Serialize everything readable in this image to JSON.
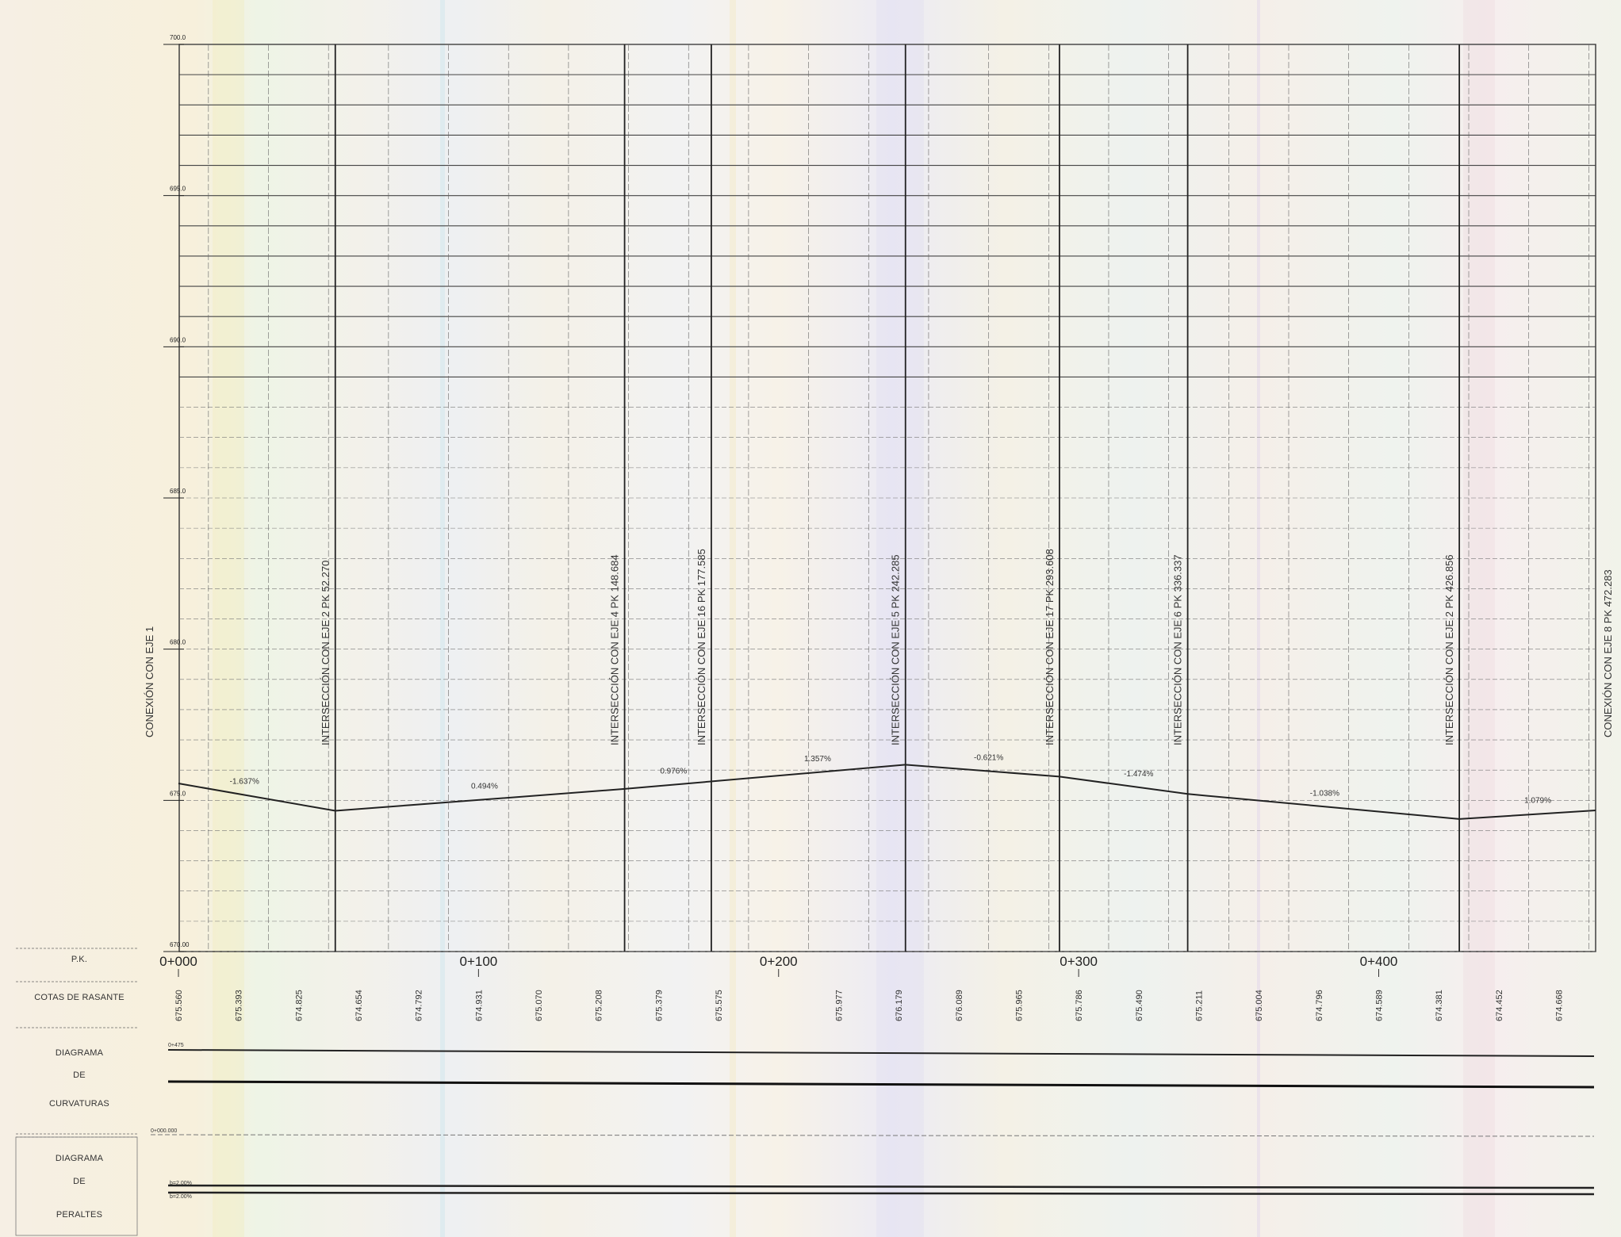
{
  "chart_data": {
    "type": "line",
    "y_ticks": [
      "700.0",
      "695.0",
      "690.0",
      "685.0",
      "680.0",
      "675.0",
      "670.00"
    ],
    "ylim": [
      670,
      700
    ],
    "xlim": [
      0,
      472.283
    ],
    "pk_labels": [
      {
        "pk": 0,
        "label": "0+000"
      },
      {
        "pk": 100,
        "label": "0+100"
      },
      {
        "pk": 200,
        "label": "0+200"
      },
      {
        "pk": 300,
        "label": "0+300"
      },
      {
        "pk": 400,
        "label": "0+400"
      }
    ],
    "profile": {
      "x": [
        0,
        52.27,
        148.684,
        242.285,
        293.608,
        336.337,
        426.856,
        472.283
      ],
      "y": [
        675.56,
        674.654,
        675.379,
        676.179,
        675.786,
        675.211,
        674.381,
        674.668
      ]
    },
    "grade_labels": [
      {
        "pk": 22,
        "text": "-1.637%"
      },
      {
        "pk": 102,
        "text": "0.494%"
      },
      {
        "pk": 165,
        "text": "0.976%"
      },
      {
        "pk": 213,
        "text": "1.357%"
      },
      {
        "pk": 270,
        "text": "-0.621%"
      },
      {
        "pk": 320,
        "text": "-1.474%"
      },
      {
        "pk": 382,
        "text": "-1.038%"
      },
      {
        "pk": 453,
        "text": "1.079%"
      }
    ],
    "vertical_annotations": [
      {
        "pk": 0,
        "text": "CONEXIÓN CON EJE 1",
        "line": false
      },
      {
        "pk": 52.27,
        "text": "INTERSECCIÓN CON EJE 2 PK 52.270",
        "line": true
      },
      {
        "pk": 148.684,
        "text": "INTERSECCIÓN CON EJE 4 PK 148.684",
        "line": true
      },
      {
        "pk": 177.585,
        "text": "INTERSECCIÓN CON EJE 16 PK 177.585",
        "line": true
      },
      {
        "pk": 242.285,
        "text": "INTERSECCIÓN CON EJE 5 PK 242.285",
        "line": true
      },
      {
        "pk": 293.608,
        "text": "INTERSECCIÓN CON EJE 17 PK 293.608",
        "line": true
      },
      {
        "pk": 336.337,
        "text": "INTERSECCIÓN CON EJE 6 PK 336.337",
        "line": true
      },
      {
        "pk": 426.856,
        "text": "INTERSECCIÓN CON EJE 2 PK 426.856",
        "line": true
      },
      {
        "pk": 472.283,
        "text": "CONEXIÓN CON EJE 8 PK 472.283",
        "line": false
      }
    ],
    "cotas": [
      {
        "pk": 0,
        "text": "675.560"
      },
      {
        "pk": 20,
        "text": "675.393"
      },
      {
        "pk": 40,
        "text": "674.825"
      },
      {
        "pk": 60,
        "text": "674.654"
      },
      {
        "pk": 80,
        "text": "674.792"
      },
      {
        "pk": 100,
        "text": "674.931"
      },
      {
        "pk": 120,
        "text": "675.070"
      },
      {
        "pk": 140,
        "text": "675.208"
      },
      {
        "pk": 160,
        "text": "675.379"
      },
      {
        "pk": 180,
        "text": "675.575"
      },
      {
        "pk": 220,
        "text": "675.977"
      },
      {
        "pk": 240,
        "text": "676.179"
      },
      {
        "pk": 260,
        "text": "676.089"
      },
      {
        "pk": 280,
        "text": "675.965"
      },
      {
        "pk": 300,
        "text": "675.786"
      },
      {
        "pk": 320,
        "text": "675.490"
      },
      {
        "pk": 340,
        "text": "675.211"
      },
      {
        "pk": 360,
        "text": "675.004"
      },
      {
        "pk": 380,
        "text": "674.796"
      },
      {
        "pk": 400,
        "text": "674.589"
      },
      {
        "pk": 420,
        "text": "674.381"
      },
      {
        "pk": 440,
        "text": "674.452"
      },
      {
        "pk": 460,
        "text": "674.668"
      }
    ]
  },
  "rows": {
    "pk": "P.K.",
    "cotas": "COTAS DE RASANTE",
    "curvaturas": [
      "DIAGRAMA",
      "DE",
      "CURVATURAS"
    ],
    "peraltes": [
      "DIAGRAMA",
      "DE",
      "PERALTES"
    ]
  },
  "curvaturas_small_label": "0+475",
  "peraltes_small_labels": [
    "0+000.000",
    "b=2.00%",
    "b=2.00%"
  ]
}
